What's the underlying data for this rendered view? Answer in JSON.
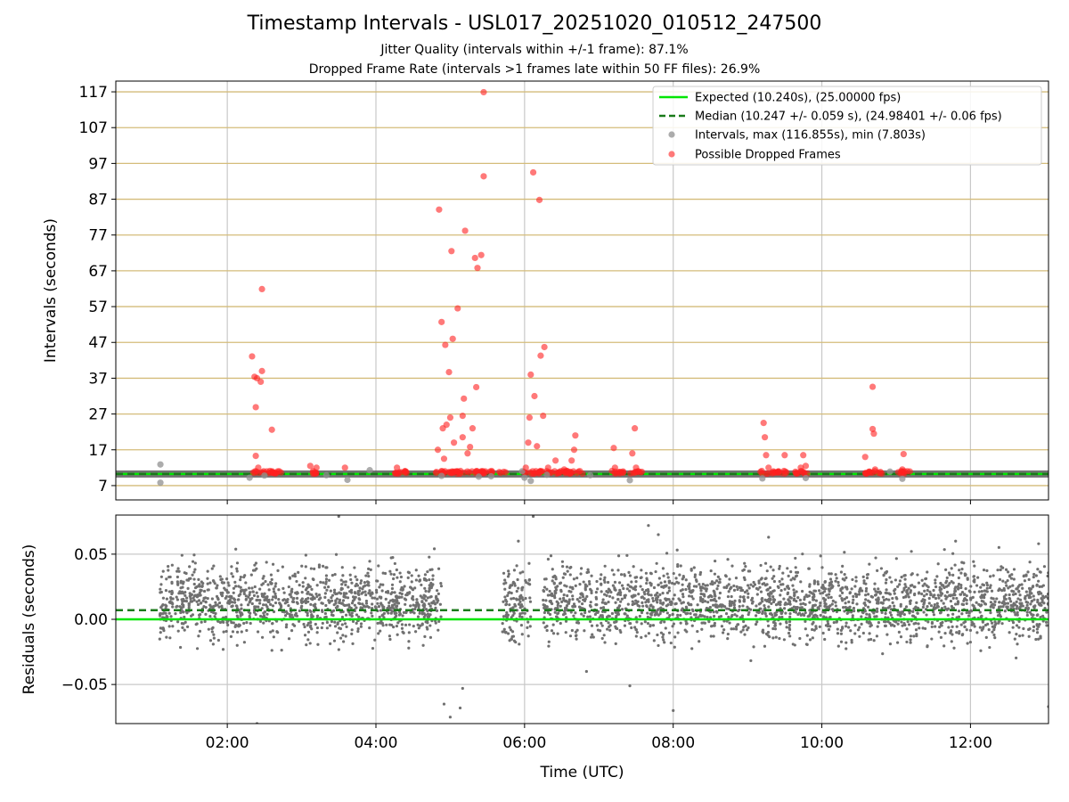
{
  "figure": {
    "title": "Timestamp Intervals - USL017_20251020_010512_247500",
    "subtitle1": "Jitter Quality (intervals within +/-1 frame): 87.1%",
    "subtitle2": "Dropped Frame Rate (intervals >1 frames late within 50 FF files): 26.9%"
  },
  "colors": {
    "expected": "#00e600",
    "median": "#1a7a1a",
    "intervals": "#909090",
    "dropped": "#ff2020",
    "residuals": "#707070",
    "hgrid_top": "#d4bc7a",
    "grid": "#c8c8c8"
  },
  "chart_data": [
    {
      "type": "scatter",
      "ylabel": "Intervals (seconds)",
      "xlim": [
        "00:30",
        "13:03"
      ],
      "ylim": [
        3,
        120
      ],
      "yticks": [
        7,
        17,
        27,
        37,
        47,
        57,
        67,
        77,
        87,
        97,
        107,
        117
      ],
      "grid": true,
      "legend_position": "top-right",
      "expected_line": 10.24,
      "median_line": 10.247,
      "legend": [
        "Expected (10.240s), (25.00000 fps)",
        "Median (10.247 +/- 0.059 s), (24.98401 +/- 0.06 fps)",
        "Intervals, max (116.855s), min (7.803s)",
        "Possible Dropped Frames"
      ],
      "series": [
        {
          "name": "Possible Dropped Frames",
          "points": [
            [
              "02:20",
              43.1
            ],
            [
              "02:22",
              37.4
            ],
            [
              "02:23",
              28.9
            ],
            [
              "02:23",
              15.3
            ],
            [
              "02:24",
              37.0
            ],
            [
              "02:27",
              36.0
            ],
            [
              "02:28",
              39.0
            ],
            [
              "02:28",
              61.9
            ],
            [
              "02:36",
              22.6
            ],
            [
              "02:25",
              12.0
            ],
            [
              "03:07",
              12.5
            ],
            [
              "03:12",
              12.0
            ],
            [
              "03:35",
              12.0
            ],
            [
              "04:17",
              12.0
            ],
            [
              "04:50",
              17.0
            ],
            [
              "04:51",
              84.1
            ],
            [
              "04:53",
              52.7
            ],
            [
              "04:54",
              23.0
            ],
            [
              "04:56",
              46.3
            ],
            [
              "04:57",
              24.0
            ],
            [
              "04:59",
              38.7
            ],
            [
              "05:00",
              26.0
            ],
            [
              "05:01",
              72.5
            ],
            [
              "05:02",
              48.0
            ],
            [
              "05:03",
              19.0
            ],
            [
              "05:06",
              56.5
            ],
            [
              "05:10",
              26.5
            ],
            [
              "05:11",
              31.3
            ],
            [
              "05:12",
              78.2
            ],
            [
              "05:14",
              16.0
            ],
            [
              "05:16",
              17.8
            ],
            [
              "05:18",
              23.0
            ],
            [
              "05:20",
              70.6
            ],
            [
              "05:21",
              34.5
            ],
            [
              "05:22",
              67.8
            ],
            [
              "05:25",
              71.4
            ],
            [
              "05:27",
              93.4
            ],
            [
              "05:27",
              116.9
            ],
            [
              "05:10",
              20.5
            ],
            [
              "04:55",
              14.5
            ],
            [
              "06:01",
              12.0
            ],
            [
              "06:03",
              19.0
            ],
            [
              "06:04",
              26.0
            ],
            [
              "06:05",
              38.0
            ],
            [
              "06:07",
              94.5
            ],
            [
              "06:08",
              32.0
            ],
            [
              "06:10",
              18.0
            ],
            [
              "06:12",
              86.8
            ],
            [
              "06:13",
              43.3
            ],
            [
              "06:15",
              26.5
            ],
            [
              "06:16",
              45.7
            ],
            [
              "06:19",
              12.0
            ],
            [
              "06:25",
              14.0
            ],
            [
              "06:32",
              11.5
            ],
            [
              "06:40",
              17.0
            ],
            [
              "06:41",
              21.0
            ],
            [
              "06:38",
              14.0
            ],
            [
              "07:12",
              17.5
            ],
            [
              "07:13",
              12.0
            ],
            [
              "07:27",
              16.0
            ],
            [
              "07:29",
              23.0
            ],
            [
              "07:30",
              12.0
            ],
            [
              "09:13",
              24.5
            ],
            [
              "09:14",
              20.5
            ],
            [
              "09:15",
              15.5
            ],
            [
              "09:17",
              12.0
            ],
            [
              "09:30",
              15.5
            ],
            [
              "09:43",
              12.0
            ],
            [
              "09:45",
              15.5
            ],
            [
              "09:47",
              12.5
            ],
            [
              "10:35",
              15.0
            ],
            [
              "10:41",
              34.6
            ],
            [
              "10:41",
              22.8
            ],
            [
              "10:42",
              21.5
            ],
            [
              "10:43",
              11.5
            ],
            [
              "11:05",
              11.5
            ],
            [
              "11:06",
              15.8
            ]
          ]
        },
        {
          "name": "Intervals, max (116.855s), min (7.803s)",
          "points": [
            [
              "01:06",
              12.9
            ],
            [
              "01:06",
              7.8
            ],
            [
              "02:18",
              9.2
            ],
            [
              "02:30",
              9.8
            ],
            [
              "03:20",
              9.9
            ],
            [
              "03:37",
              8.6
            ],
            [
              "03:55",
              11.3
            ],
            [
              "04:53",
              9.7
            ],
            [
              "05:23",
              9.5
            ],
            [
              "05:33",
              9.6
            ],
            [
              "05:58",
              11.0
            ],
            [
              "06:00",
              9.2
            ],
            [
              "06:05",
              8.3
            ],
            [
              "06:18",
              10.0
            ],
            [
              "06:53",
              9.9
            ],
            [
              "07:25",
              8.5
            ],
            [
              "09:12",
              9.0
            ],
            [
              "09:47",
              9.1
            ],
            [
              "10:55",
              10.9
            ],
            [
              "11:05",
              8.9
            ]
          ]
        }
      ],
      "dropped_clusters": [
        [
          "02:18",
          "02:44"
        ],
        [
          "03:06",
          "03:14"
        ],
        [
          "04:14",
          "04:20"
        ],
        [
          "04:20",
          "04:27"
        ],
        [
          "04:48",
          "05:45"
        ],
        [
          "05:58",
          "06:48"
        ],
        [
          "07:10",
          "07:22"
        ],
        [
          "07:25",
          "07:35"
        ],
        [
          "09:10",
          "09:25"
        ],
        [
          "09:25",
          "09:32"
        ],
        [
          "09:38",
          "09:50"
        ],
        [
          "10:35",
          "10:50"
        ],
        [
          "11:00",
          "11:12"
        ]
      ]
    },
    {
      "type": "scatter",
      "ylabel": "Residuals (seconds)",
      "xlabel": "Time (UTC)",
      "xlim": [
        "00:30",
        "13:03"
      ],
      "ylim": [
        -0.08,
        0.08
      ],
      "yticks": [
        -0.05,
        0.0,
        0.05
      ],
      "ytick_labels": [
        "−0.05",
        "0.00",
        "0.05"
      ],
      "xticks": [
        "02:00",
        "04:00",
        "06:00",
        "08:00",
        "10:00",
        "12:00"
      ],
      "grid": true,
      "expected_line": 0.0,
      "median_line": 0.007,
      "residual_spread": 0.02,
      "data_segments": [
        [
          "01:05",
          "04:53"
        ],
        [
          "05:42",
          "06:05"
        ],
        [
          "06:15",
          "13:03"
        ]
      ],
      "outliers": [
        [
          "02:24",
          -0.08
        ],
        [
          "02:08",
          -0.02
        ],
        [
          "03:30",
          0.079
        ],
        [
          "04:55",
          -0.065
        ],
        [
          "05:00",
          -0.075
        ],
        [
          "05:08",
          -0.068
        ],
        [
          "05:10",
          -0.053
        ],
        [
          "06:07",
          0.079
        ],
        [
          "05:55",
          0.06
        ],
        [
          "07:25",
          -0.051
        ],
        [
          "07:40",
          0.072
        ],
        [
          "08:00",
          -0.07
        ],
        [
          "07:48",
          0.065
        ],
        [
          "09:17",
          0.063
        ],
        [
          "11:48",
          0.06
        ],
        [
          "12:55",
          0.058
        ],
        [
          "13:03",
          -0.067
        ],
        [
          "06:50",
          -0.04
        ]
      ]
    }
  ]
}
